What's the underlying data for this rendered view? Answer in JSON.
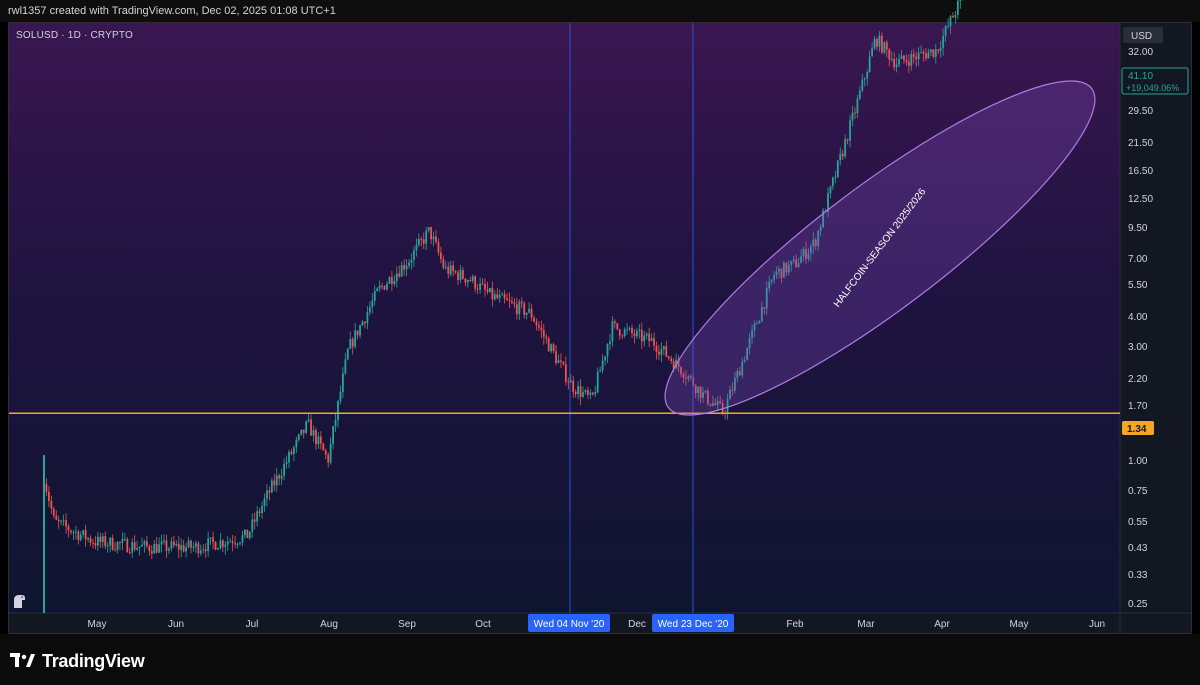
{
  "header": {
    "credit": "rwl1357 created with TradingView.com, Dec 02, 2025 01:08 UTC+1"
  },
  "symbol": {
    "label": "SOLUSD · 1D · CRYPTO"
  },
  "currency": "USD",
  "colors": {
    "up": "#26a69a",
    "down": "#ef5350",
    "support_line": "#f5a623",
    "ellipse": "#b07be6",
    "vline": "#2962ff",
    "price_tag": "#26a69a"
  },
  "chart_data": {
    "type": "candlestick",
    "scale": "log",
    "y_ticks": [
      "32.00",
      "29.50",
      "21.50",
      "16.50",
      "12.50",
      "9.50",
      "7.00",
      "5.50",
      "4.00",
      "3.00",
      "2.20",
      "1.70",
      "1.00",
      "0.75",
      "0.55",
      "0.43",
      "0.33",
      "0.25"
    ],
    "x_ticks": [
      "May",
      "Jun",
      "Jul",
      "Aug",
      "Sep",
      "Oct",
      "Dec",
      "Feb",
      "Mar",
      "Apr",
      "May",
      "Jun"
    ],
    "last_price": "41.10",
    "last_change": "+19,049.06%",
    "support_level": "1.34",
    "support_value": 1.34,
    "vertical_markers": [
      "Wed 04 Nov '20",
      "Wed 23 Dec '20"
    ],
    "annotation": "HALFCOIN-SEASON 2025/2026",
    "price_path_anchors": [
      [
        0,
        0.9
      ],
      [
        0.01,
        0.68
      ],
      [
        0.05,
        0.6
      ],
      [
        0.1,
        0.58
      ],
      [
        0.15,
        0.58
      ],
      [
        0.2,
        0.62
      ],
      [
        0.22,
        0.8
      ],
      [
        0.26,
        1.25
      ],
      [
        0.28,
        1.0
      ],
      [
        0.3,
        2.0
      ],
      [
        0.33,
        2.9
      ],
      [
        0.36,
        3.5
      ],
      [
        0.38,
        4.2
      ],
      [
        0.395,
        3.3
      ],
      [
        0.42,
        3.1
      ],
      [
        0.44,
        2.8
      ],
      [
        0.48,
        2.5
      ],
      [
        0.52,
        1.6
      ],
      [
        0.54,
        1.45
      ],
      [
        0.56,
        2.3
      ],
      [
        0.6,
        2.1
      ],
      [
        0.63,
        1.75
      ],
      [
        0.65,
        1.5
      ],
      [
        0.67,
        1.35
      ],
      [
        0.69,
        1.9
      ],
      [
        0.72,
        3.2
      ],
      [
        0.74,
        3.4
      ],
      [
        0.76,
        3.9
      ],
      [
        0.8,
        9.0
      ],
      [
        0.82,
        14.0
      ],
      [
        0.84,
        12.0
      ],
      [
        0.88,
        13.0
      ],
      [
        0.92,
        22.0
      ],
      [
        0.95,
        28.0
      ],
      [
        0.97,
        32.0
      ],
      [
        1.0,
        33.0
      ]
    ],
    "price_path_tail": [
      [
        0,
        33.0
      ],
      [
        0.2,
        27.0
      ],
      [
        0.45,
        34.0
      ],
      [
        0.55,
        26.0
      ],
      [
        0.7,
        30.0
      ],
      [
        1.0,
        35.0
      ]
    ]
  }
}
